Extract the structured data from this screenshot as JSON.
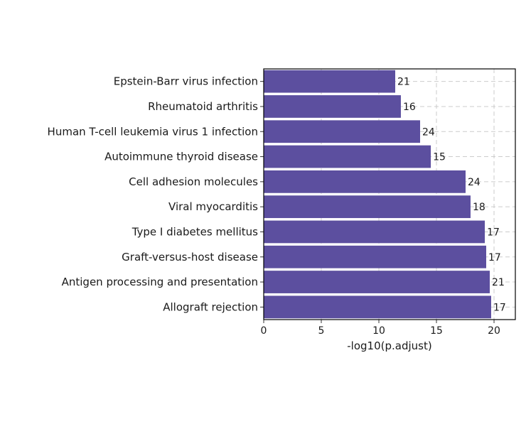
{
  "chart_data": {
    "type": "bar",
    "orientation": "horizontal",
    "title": "",
    "xlabel": "-log10(p.adjust)",
    "ylabel": "",
    "xlim": [
      0,
      21.85
    ],
    "xticks": [
      0,
      5,
      10,
      15,
      20
    ],
    "grid": true,
    "bar_color": "#5c4f9f",
    "categories": [
      "Epstein-Barr virus infection",
      "Rheumatoid arthritis",
      "Human T-cell leukemia virus 1 infection",
      "Autoimmune thyroid disease",
      "Cell adhesion molecules",
      "Viral myocarditis",
      "Type I diabetes mellitus",
      "Graft-versus-host disease",
      "Antigen processing and presentation",
      "Allograft rejection"
    ],
    "values": [
      11.42,
      11.91,
      13.58,
      14.51,
      17.53,
      17.96,
      19.2,
      19.32,
      19.63,
      19.75
    ],
    "labels": [
      "21",
      "16",
      "24",
      "15",
      "24",
      "18",
      "17",
      "17",
      "21",
      "17"
    ]
  }
}
